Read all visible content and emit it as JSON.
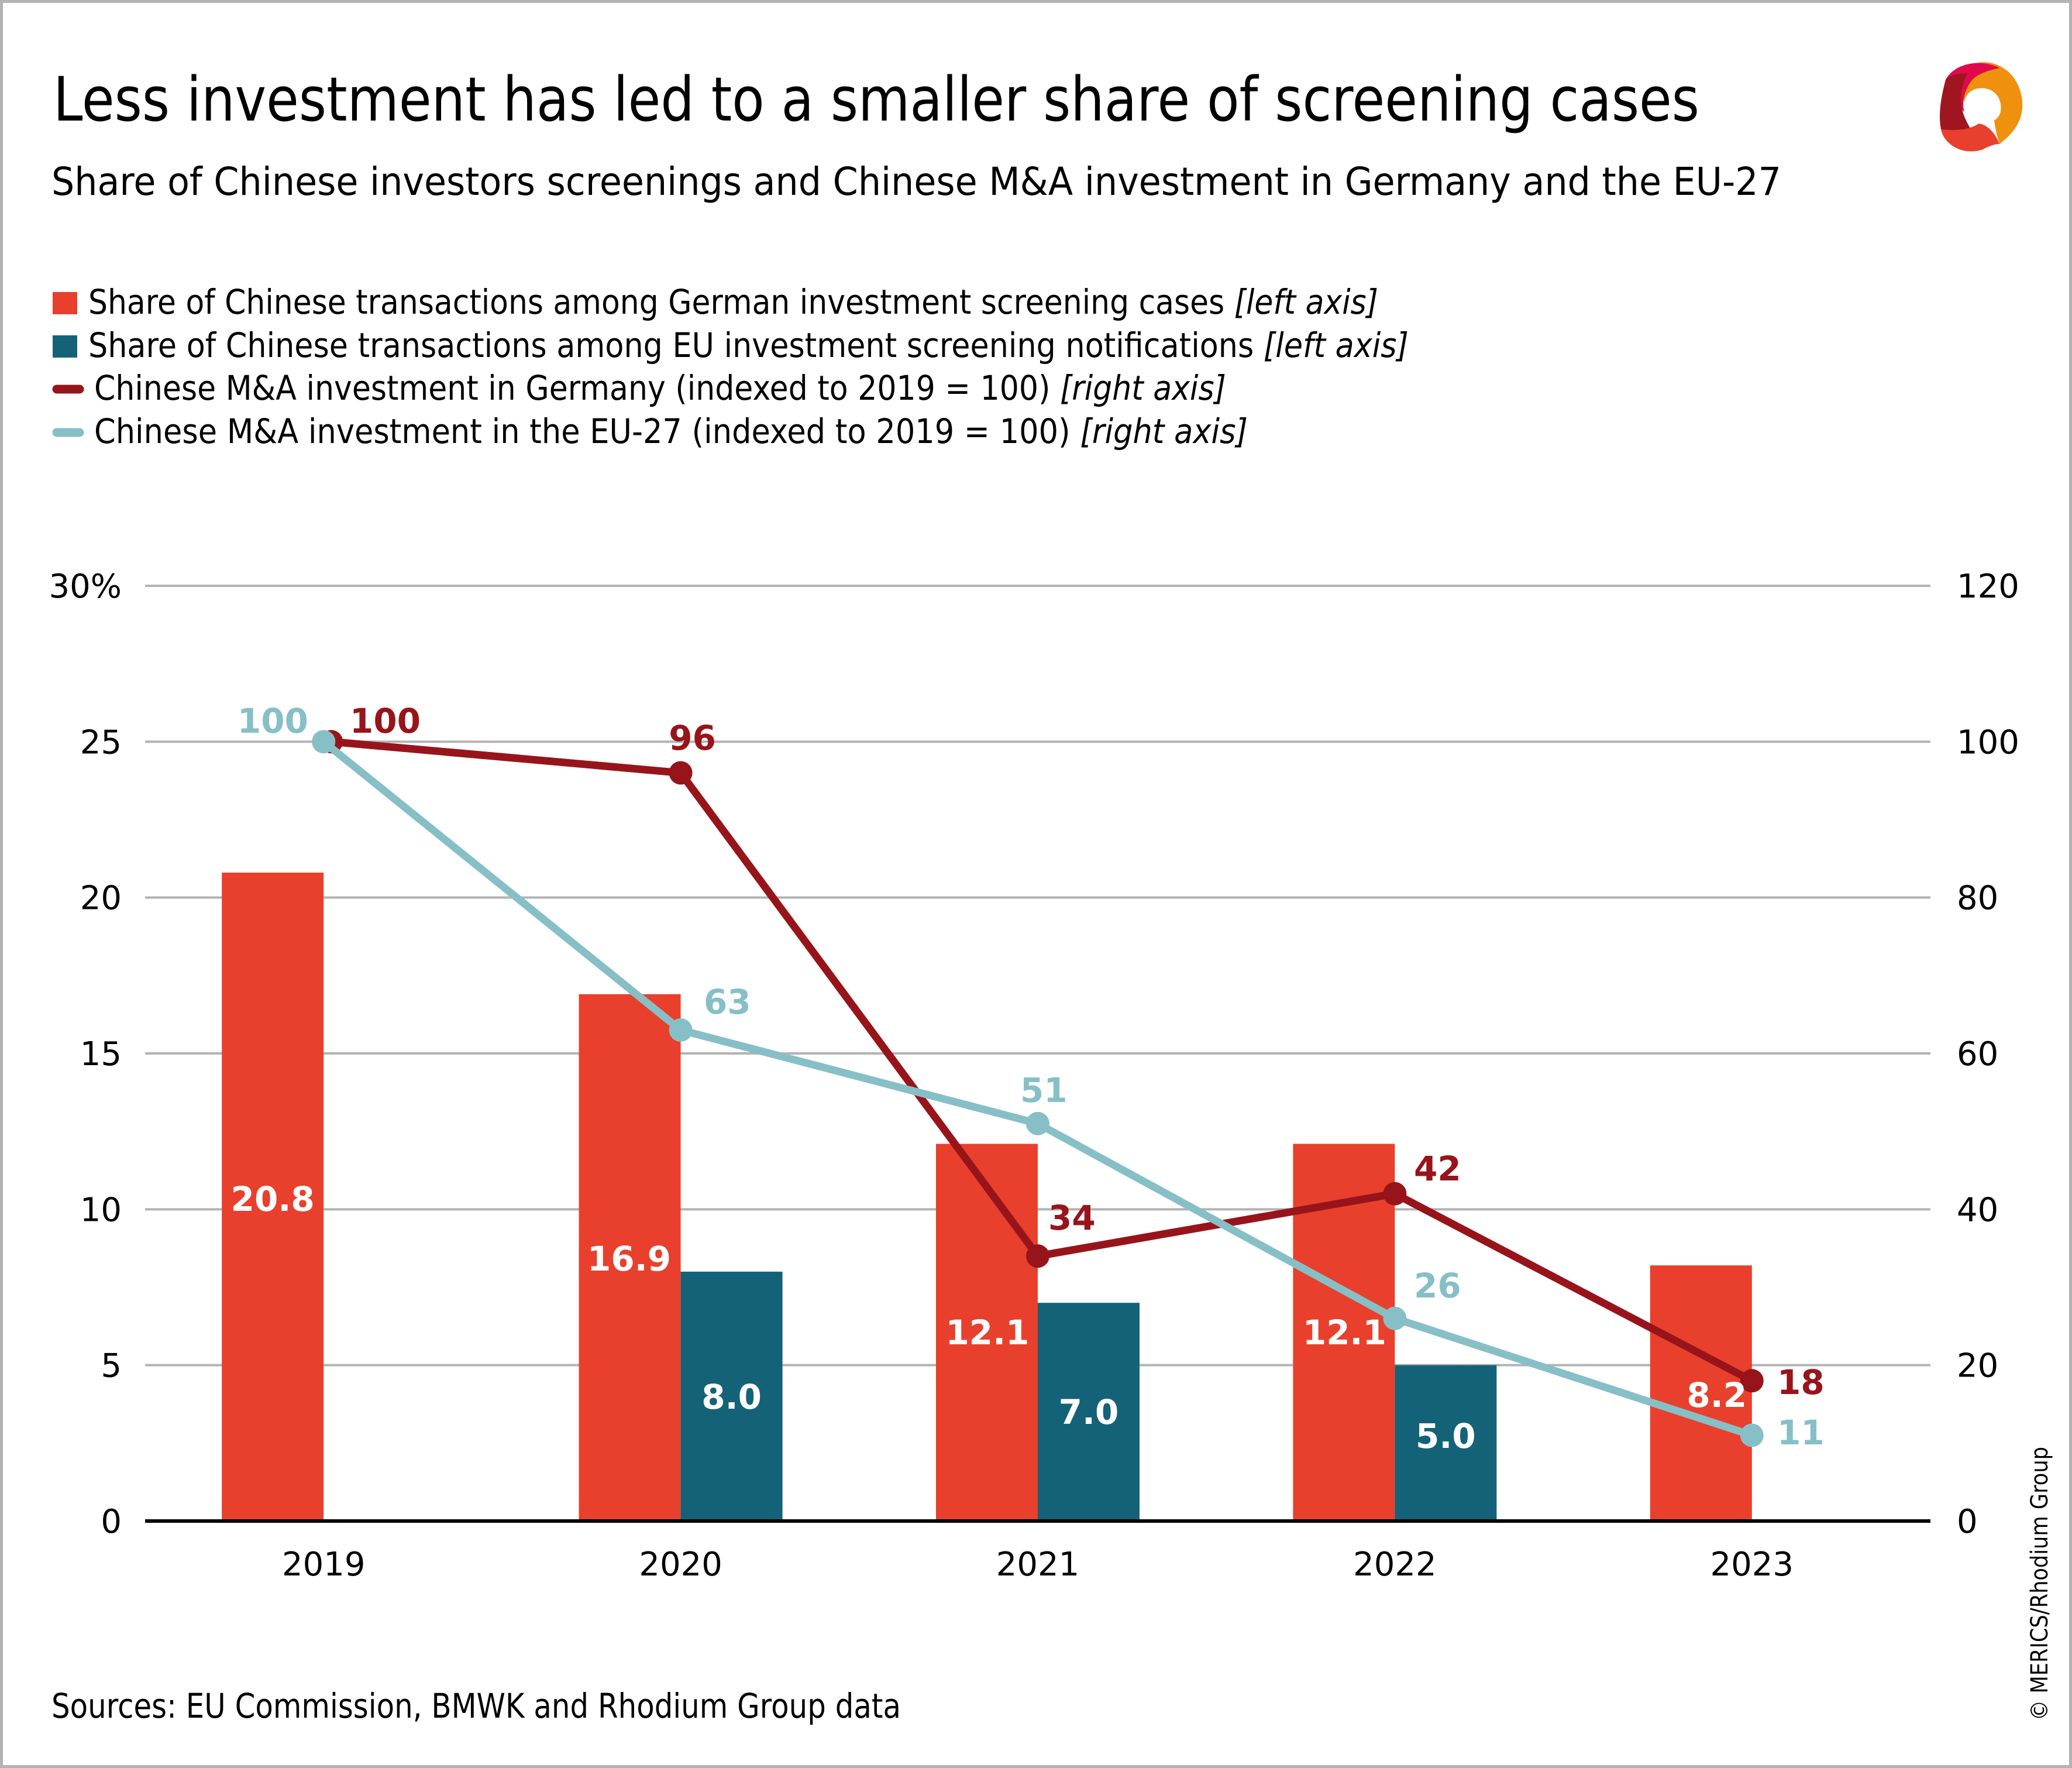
{
  "header": {
    "title": "Less investment has led to a smaller share of screening cases",
    "subtitle": "Share of Chinese investors screenings and Chinese M&A investment in Germany and the EU-27",
    "logo": "merics-logo-icon"
  },
  "legend": [
    {
      "text": "Share of Chinese transactions among German investment screening cases ",
      "axis": "[left axis]",
      "marker": "square",
      "color": "#e8402c"
    },
    {
      "text": "Share of Chinese transactions among EU investment screening notifications ",
      "axis": "[left axis]",
      "marker": "square",
      "color": "#146278"
    },
    {
      "text": "Chinese M&A investment in Germany (indexed to 2019 = 100) ",
      "axis": "[right axis]",
      "marker": "line",
      "color": "#98141b"
    },
    {
      "text": "Chinese M&A investment in the EU-27 (indexed to 2019 = 100) ",
      "axis": "[right axis]",
      "marker": "line",
      "color": "#87bfc7"
    }
  ],
  "footer": {
    "sources": "Sources: EU Commission, BMWK and Rhodium Group data",
    "copyright": "© MERICS/Rhodium Group"
  },
  "chart_data": {
    "type": "bar",
    "title": "Less investment has led to a smaller share of screening cases",
    "subtitle": "Share of Chinese investors screenings and Chinese M&A investment in Germany and the EU-27",
    "categories": [
      "2019",
      "2020",
      "2021",
      "2022",
      "2023"
    ],
    "xlabel": "",
    "left_axis": {
      "label": "",
      "range": [
        0,
        30
      ],
      "ticks": [
        0,
        5,
        10,
        15,
        20,
        25,
        30
      ],
      "tick_labels": [
        "0",
        "5",
        "10",
        "15",
        "20",
        "25",
        "30%"
      ]
    },
    "right_axis": {
      "label": "",
      "range": [
        0,
        120
      ],
      "ticks": [
        0,
        20,
        40,
        60,
        80,
        100,
        120
      ],
      "tick_labels": [
        "0",
        "20",
        "40",
        "60",
        "80",
        "100",
        "120"
      ]
    },
    "grid": true,
    "legend_position": "top-left",
    "series": [
      {
        "name": "Share of Chinese transactions among German investment screening cases",
        "type": "bar",
        "axis": "left",
        "color": "#e8402c",
        "values": [
          20.8,
          16.9,
          12.1,
          12.1,
          8.2
        ],
        "labels": [
          "20.8",
          "16.9",
          "12.1",
          "12.1",
          "8.2"
        ]
      },
      {
        "name": "Share of Chinese transactions among EU investment screening notifications",
        "type": "bar",
        "axis": "left",
        "color": "#146278",
        "values": [
          null,
          8.0,
          7.0,
          5.0,
          null
        ],
        "labels": [
          null,
          "8.0",
          "7.0",
          "5.0",
          null
        ]
      },
      {
        "name": "Chinese M&A investment in Germany (indexed to 2019 = 100)",
        "type": "line",
        "axis": "right",
        "color": "#98141b",
        "values": [
          100,
          96,
          34,
          42,
          18
        ],
        "labels": [
          "100",
          "96",
          "34",
          "42",
          "18"
        ]
      },
      {
        "name": "Chinese M&A investment in the EU-27 (indexed to 2019 = 100)",
        "type": "line",
        "axis": "right",
        "color": "#87bfc7",
        "values": [
          100,
          63,
          51,
          26,
          11
        ],
        "labels": [
          "100",
          "63",
          "51",
          "26",
          "11"
        ]
      }
    ]
  }
}
